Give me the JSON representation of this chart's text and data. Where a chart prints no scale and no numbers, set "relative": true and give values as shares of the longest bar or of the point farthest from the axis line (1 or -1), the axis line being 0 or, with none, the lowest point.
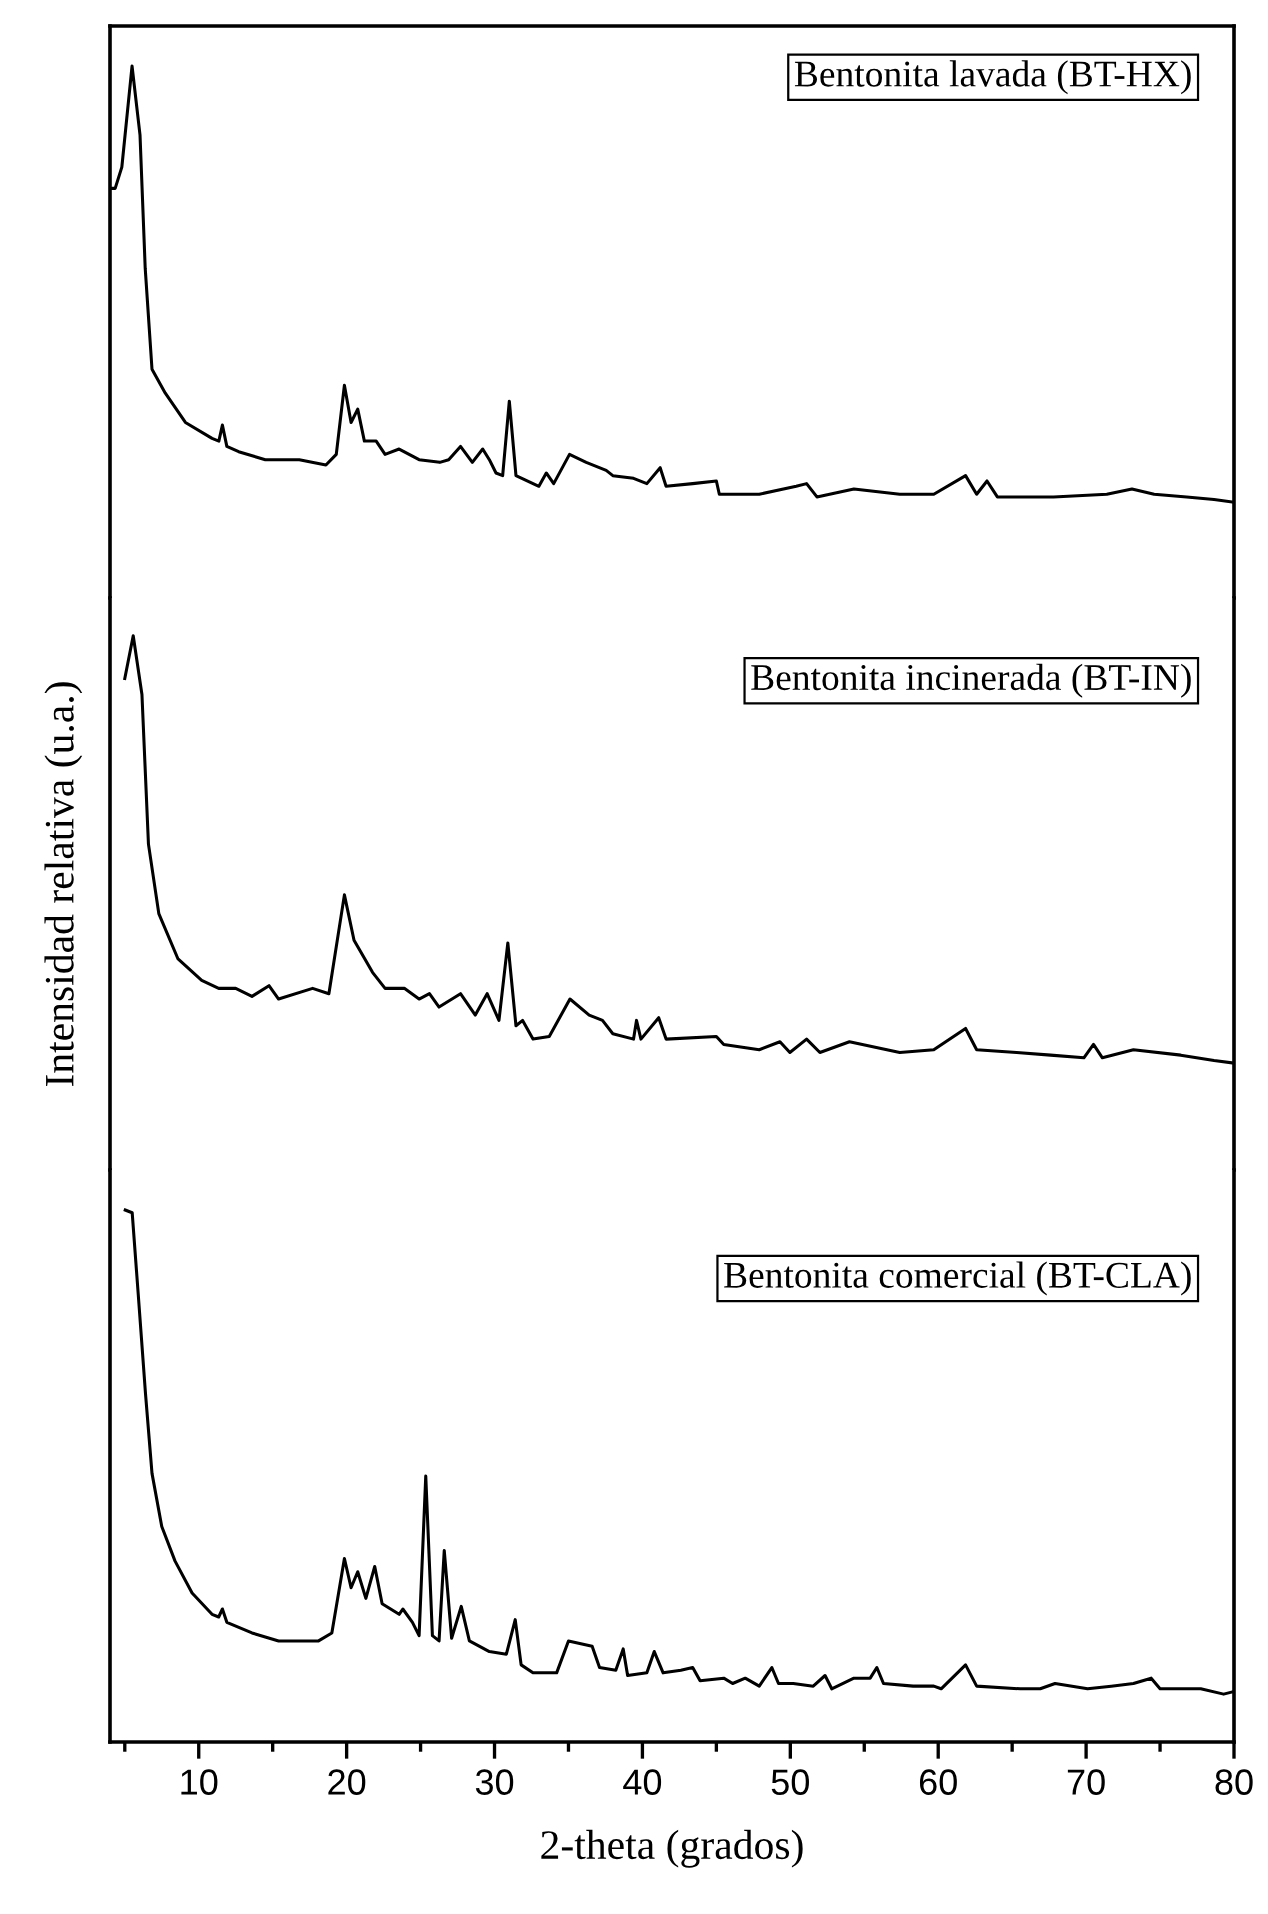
{
  "chart_data": [
    {
      "type": "line",
      "relative": true,
      "tick_labels": false,
      "xlim": [
        4,
        80
      ],
      "color": "#000000",
      "annotations": [
        "Bentonita lavada (BT-HX)"
      ],
      "x": [
        4.04,
        4.35,
        4.8,
        5.49,
        6.03,
        6.38,
        6.84,
        7.74,
        9.1,
        10.9,
        11.36,
        11.6,
        11.9,
        12.7,
        14.5,
        16.8,
        18.6,
        19.3,
        19.85,
        20.3,
        20.75,
        21.2,
        22.0,
        22.6,
        23.55,
        24.9,
        26.3,
        26.9,
        27.7,
        28.5,
        29.2,
        29.65,
        30.1,
        30.55,
        31.0,
        31.45,
        33.0,
        33.5,
        34.0,
        35.07,
        36.2,
        37.55,
        38.0,
        39.4,
        40.3,
        41.2,
        41.6,
        43.4,
        45.0,
        45.2,
        47.9,
        50.4,
        51.1,
        51.8,
        54.3,
        57.4,
        59.7,
        61.85,
        62.6,
        63.3,
        64.0,
        67.8,
        71.4,
        73.1,
        74.6,
        76.8,
        78.65,
        80.0
      ],
      "values": [
        0.77,
        0.77,
        0.81,
        1,
        0.87,
        0.62,
        0.43,
        0.385,
        0.33,
        0.3,
        0.295,
        0.325,
        0.285,
        0.275,
        0.26,
        0.26,
        0.25,
        0.27,
        0.4,
        0.33,
        0.355,
        0.295,
        0.295,
        0.27,
        0.28,
        0.26,
        0.255,
        0.26,
        0.285,
        0.255,
        0.28,
        0.26,
        0.235,
        0.23,
        0.37,
        0.23,
        0.21,
        0.235,
        0.215,
        0.27,
        0.255,
        0.24,
        0.23,
        0.225,
        0.215,
        0.245,
        0.21,
        0.215,
        0.22,
        0.195,
        0.195,
        0.21,
        0.215,
        0.19,
        0.205,
        0.195,
        0.195,
        0.23,
        0.195,
        0.22,
        0.19,
        0.19,
        0.195,
        0.205,
        0.195,
        0.19,
        0.185,
        0.18
      ]
    },
    {
      "type": "line",
      "relative": true,
      "tick_labels": false,
      "xlim": [
        4,
        80
      ],
      "color": "#000000",
      "ylabel": "Intensidad relativa (u.a.)",
      "annotations": [
        "Bentonita incinerada (BT-IN)"
      ],
      "x": [
        5.0,
        5.57,
        6.16,
        6.6,
        7.3,
        8.6,
        10.2,
        11.35,
        12.5,
        13.6,
        14.75,
        15.4,
        17.7,
        18.8,
        19.85,
        20.5,
        21.75,
        22.6,
        23.9,
        24.9,
        25.6,
        26.25,
        27.7,
        28.7,
        29.5,
        30.3,
        30.9,
        31.45,
        31.9,
        32.6,
        33.7,
        35.1,
        36.4,
        37.3,
        38.0,
        39.4,
        39.6,
        39.9,
        41.1,
        41.6,
        45.0,
        45.5,
        47.9,
        49.3,
        49.97,
        51.1,
        52.0,
        54.0,
        57.4,
        59.7,
        61.85,
        62.6,
        65.3,
        67.6,
        69.85,
        70.5,
        71.1,
        73.2,
        76.4,
        78.65,
        80.0
      ],
      "values": [
        0.92,
        1,
        0.89,
        0.61,
        0.48,
        0.395,
        0.355,
        0.34,
        0.34,
        0.325,
        0.345,
        0.32,
        0.34,
        0.33,
        0.515,
        0.43,
        0.37,
        0.34,
        0.34,
        0.32,
        0.33,
        0.305,
        0.33,
        0.29,
        0.33,
        0.28,
        0.425,
        0.27,
        0.28,
        0.245,
        0.25,
        0.32,
        0.29,
        0.28,
        0.255,
        0.245,
        0.28,
        0.245,
        0.285,
        0.245,
        0.25,
        0.235,
        0.225,
        0.24,
        0.22,
        0.245,
        0.22,
        0.24,
        0.22,
        0.225,
        0.265,
        0.225,
        0.22,
        0.215,
        0.21,
        0.235,
        0.21,
        0.225,
        0.215,
        0.205,
        0.2
      ]
    },
    {
      "type": "line",
      "relative": true,
      "tick_labels": "x",
      "xlim": [
        4,
        80
      ],
      "color": "#000000",
      "xlabel": "2-theta (grados)",
      "annotations": [
        "Bentonita comercial (BT-CLA)"
      ],
      "xticks": [
        {
          "value": 5,
          "label": null
        },
        10,
        {
          "value": 15,
          "label": null
        },
        20,
        {
          "value": 25,
          "label": null
        },
        30,
        {
          "value": 35,
          "label": null
        },
        40,
        {
          "value": 45,
          "label": null
        },
        50,
        {
          "value": 55,
          "label": null
        },
        60,
        {
          "value": 65,
          "label": null
        },
        70,
        {
          "value": 75,
          "label": null
        },
        80
      ],
      "x": [
        5.03,
        5.5,
        5.9,
        6.4,
        6.84,
        7.5,
        8.4,
        9.55,
        10.9,
        11.35,
        11.6,
        11.9,
        13.6,
        15.4,
        18.1,
        19.0,
        19.85,
        20.3,
        20.75,
        21.3,
        21.9,
        22.4,
        23.55,
        23.8,
        24.45,
        24.9,
        25.35,
        25.8,
        26.25,
        26.6,
        27.1,
        27.75,
        28.3,
        29.65,
        30.8,
        31.4,
        31.8,
        32.6,
        34.2,
        35.0,
        36.6,
        37.1,
        38.2,
        38.7,
        39.0,
        40.3,
        40.8,
        41.4,
        42.6,
        43.4,
        43.9,
        45.5,
        46.1,
        46.95,
        47.9,
        48.75,
        49.2,
        50.2,
        51.55,
        52.35,
        52.8,
        54.3,
        55.4,
        55.85,
        56.3,
        58.3,
        59.7,
        60.2,
        61.85,
        62.6,
        65.55,
        66.9,
        67.9,
        70.1,
        71.7,
        73.2,
        74.4,
        75.0,
        77.75,
        79.3,
        80.0
      ],
      "values": [
        1,
        0.995,
        0.845,
        0.655,
        0.505,
        0.405,
        0.34,
        0.28,
        0.24,
        0.235,
        0.25,
        0.225,
        0.205,
        0.19,
        0.19,
        0.205,
        0.345,
        0.29,
        0.32,
        0.27,
        0.33,
        0.26,
        0.24,
        0.25,
        0.225,
        0.2,
        0.5,
        0.2,
        0.19,
        0.36,
        0.195,
        0.255,
        0.19,
        0.17,
        0.165,
        0.23,
        0.145,
        0.13,
        0.13,
        0.19,
        0.18,
        0.14,
        0.135,
        0.175,
        0.125,
        0.13,
        0.17,
        0.13,
        0.135,
        0.14,
        0.115,
        0.12,
        0.11,
        0.12,
        0.105,
        0.14,
        0.11,
        0.11,
        0.105,
        0.125,
        0.1,
        0.12,
        0.12,
        0.14,
        0.11,
        0.105,
        0.105,
        0.1,
        0.145,
        0.105,
        0.1,
        0.1,
        0.11,
        0.1,
        0.105,
        0.11,
        0.12,
        0.1,
        0.1,
        0.09,
        0.095
      ]
    }
  ]
}
